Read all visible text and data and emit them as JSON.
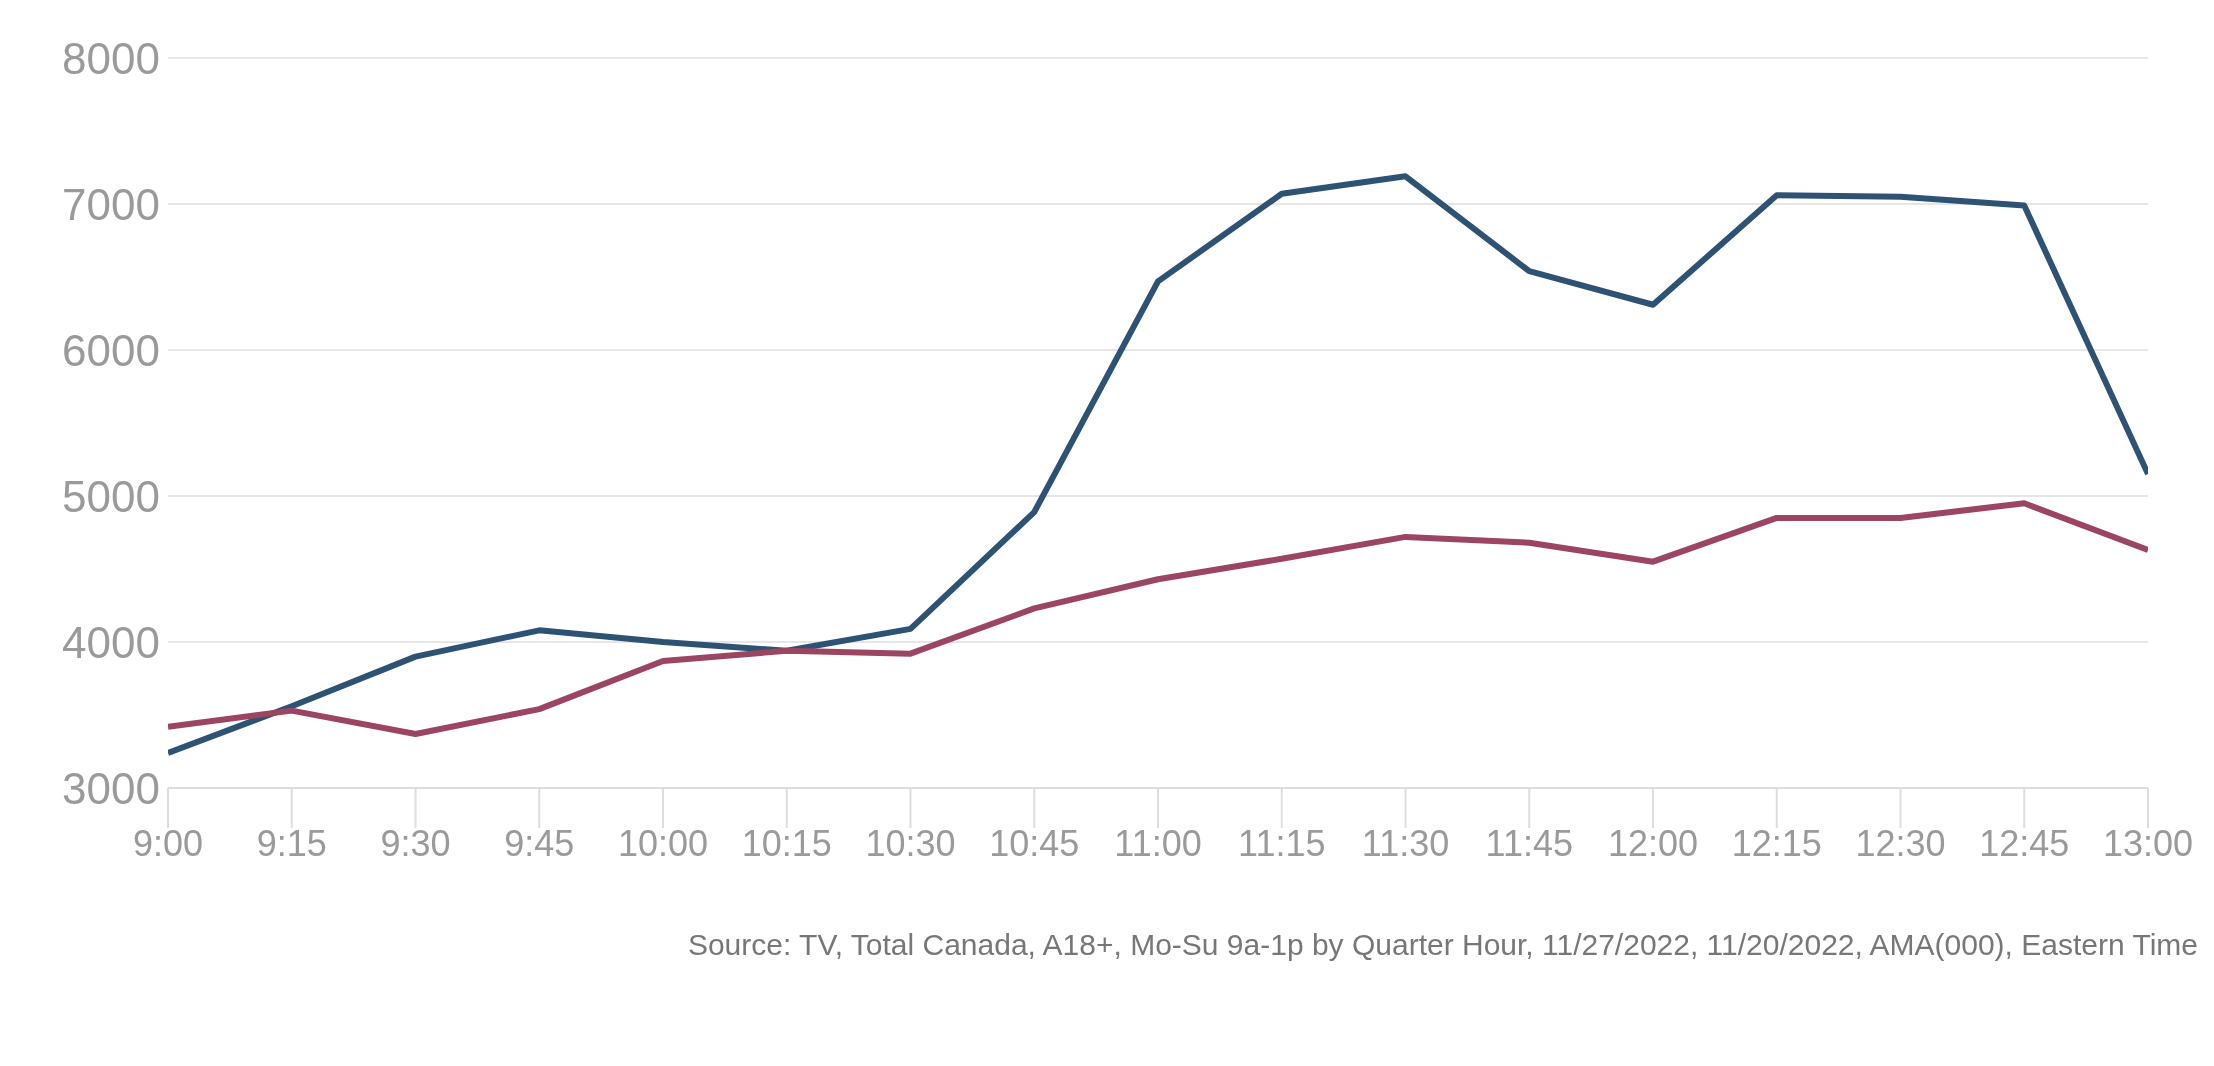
{
  "chart_data": {
    "type": "line",
    "categories": [
      "9:00",
      "9:15",
      "9:30",
      "9:45",
      "10:00",
      "10:15",
      "10:30",
      "10:45",
      "11:00",
      "11:15",
      "11:30",
      "11:45",
      "12:00",
      "12:15",
      "12:30",
      "12:45",
      "13:00"
    ],
    "series": [
      {
        "color": "#2d5273",
        "values": [
          3240,
          3560,
          3900,
          4080,
          4000,
          3940,
          4090,
          4890,
          6470,
          7070,
          7190,
          6540,
          6310,
          7060,
          7050,
          6990,
          5150
        ]
      },
      {
        "color": "#9b4560",
        "values": [
          3420,
          3530,
          3370,
          3540,
          3870,
          3940,
          3920,
          4230,
          4430,
          4570,
          4720,
          4680,
          4550,
          4850,
          4850,
          4950,
          4630
        ]
      }
    ],
    "ylim": [
      3000,
      8000
    ],
    "yticks": [
      3000,
      4000,
      5000,
      6000,
      7000,
      8000
    ],
    "grid": "y",
    "legend": false,
    "marker": "none",
    "line_style": "solid",
    "annotations": [
      "Source: TV, Total Canada, A18+, Mo-Su 9a-1p by Quarter Hour, 11/27/2022, 11/20/2022, AMA(000), Eastern Time"
    ]
  }
}
